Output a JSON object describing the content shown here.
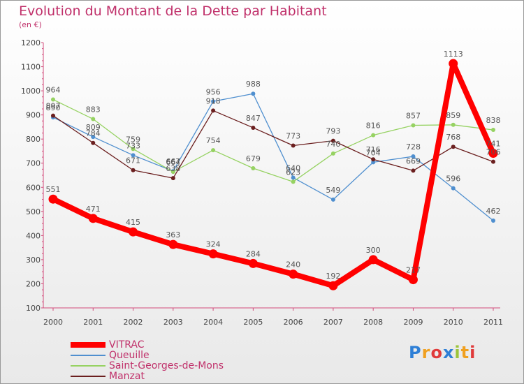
{
  "header": {
    "title": "Evolution du Montant de la Dette par Habitant",
    "subtitle": "(en €)"
  },
  "logo": {
    "text": "Proxiti",
    "letters": [
      "P",
      "r",
      "o",
      "x",
      "i",
      "t",
      "i"
    ],
    "colors": [
      "#2e7fd6",
      "#f0a020",
      "#e03a3a",
      "#2e7fd6",
      "#9bc43a",
      "#f0a020",
      "#e03a3a"
    ]
  },
  "chart_data": {
    "type": "line",
    "x": [
      "2000",
      "2001",
      "2002",
      "2003",
      "2004",
      "2005",
      "2006",
      "2007",
      "2008",
      "2009",
      "2010",
      "2011"
    ],
    "yticks": [
      100,
      200,
      300,
      400,
      500,
      600,
      700,
      800,
      900,
      1000,
      1100,
      1200
    ],
    "ylim": [
      100,
      1200
    ],
    "grid": false,
    "legend": "bottom-left",
    "series": [
      {
        "name": "Queuille",
        "color": "#4f8fcf",
        "values": [
          890,
          809,
          733,
          667,
          956,
          988,
          640,
          549,
          704,
          728,
          596,
          462
        ]
      },
      {
        "name": "Saint-Georges-de-Mons",
        "color": "#96d262",
        "values": [
          964,
          883,
          759,
          664,
          754,
          679,
          623,
          740,
          816,
          857,
          859,
          838
        ]
      },
      {
        "name": "Manzat",
        "color": "#6b1f1f",
        "values": [
          897,
          784,
          671,
          638,
          918,
          847,
          773,
          793,
          716,
          669,
          768,
          706
        ]
      },
      {
        "name": "VITRAC",
        "color": "#ff0000",
        "values": [
          551,
          471,
          415,
          363,
          324,
          284,
          240,
          192,
          300,
          217,
          1113,
          741
        ]
      }
    ]
  }
}
